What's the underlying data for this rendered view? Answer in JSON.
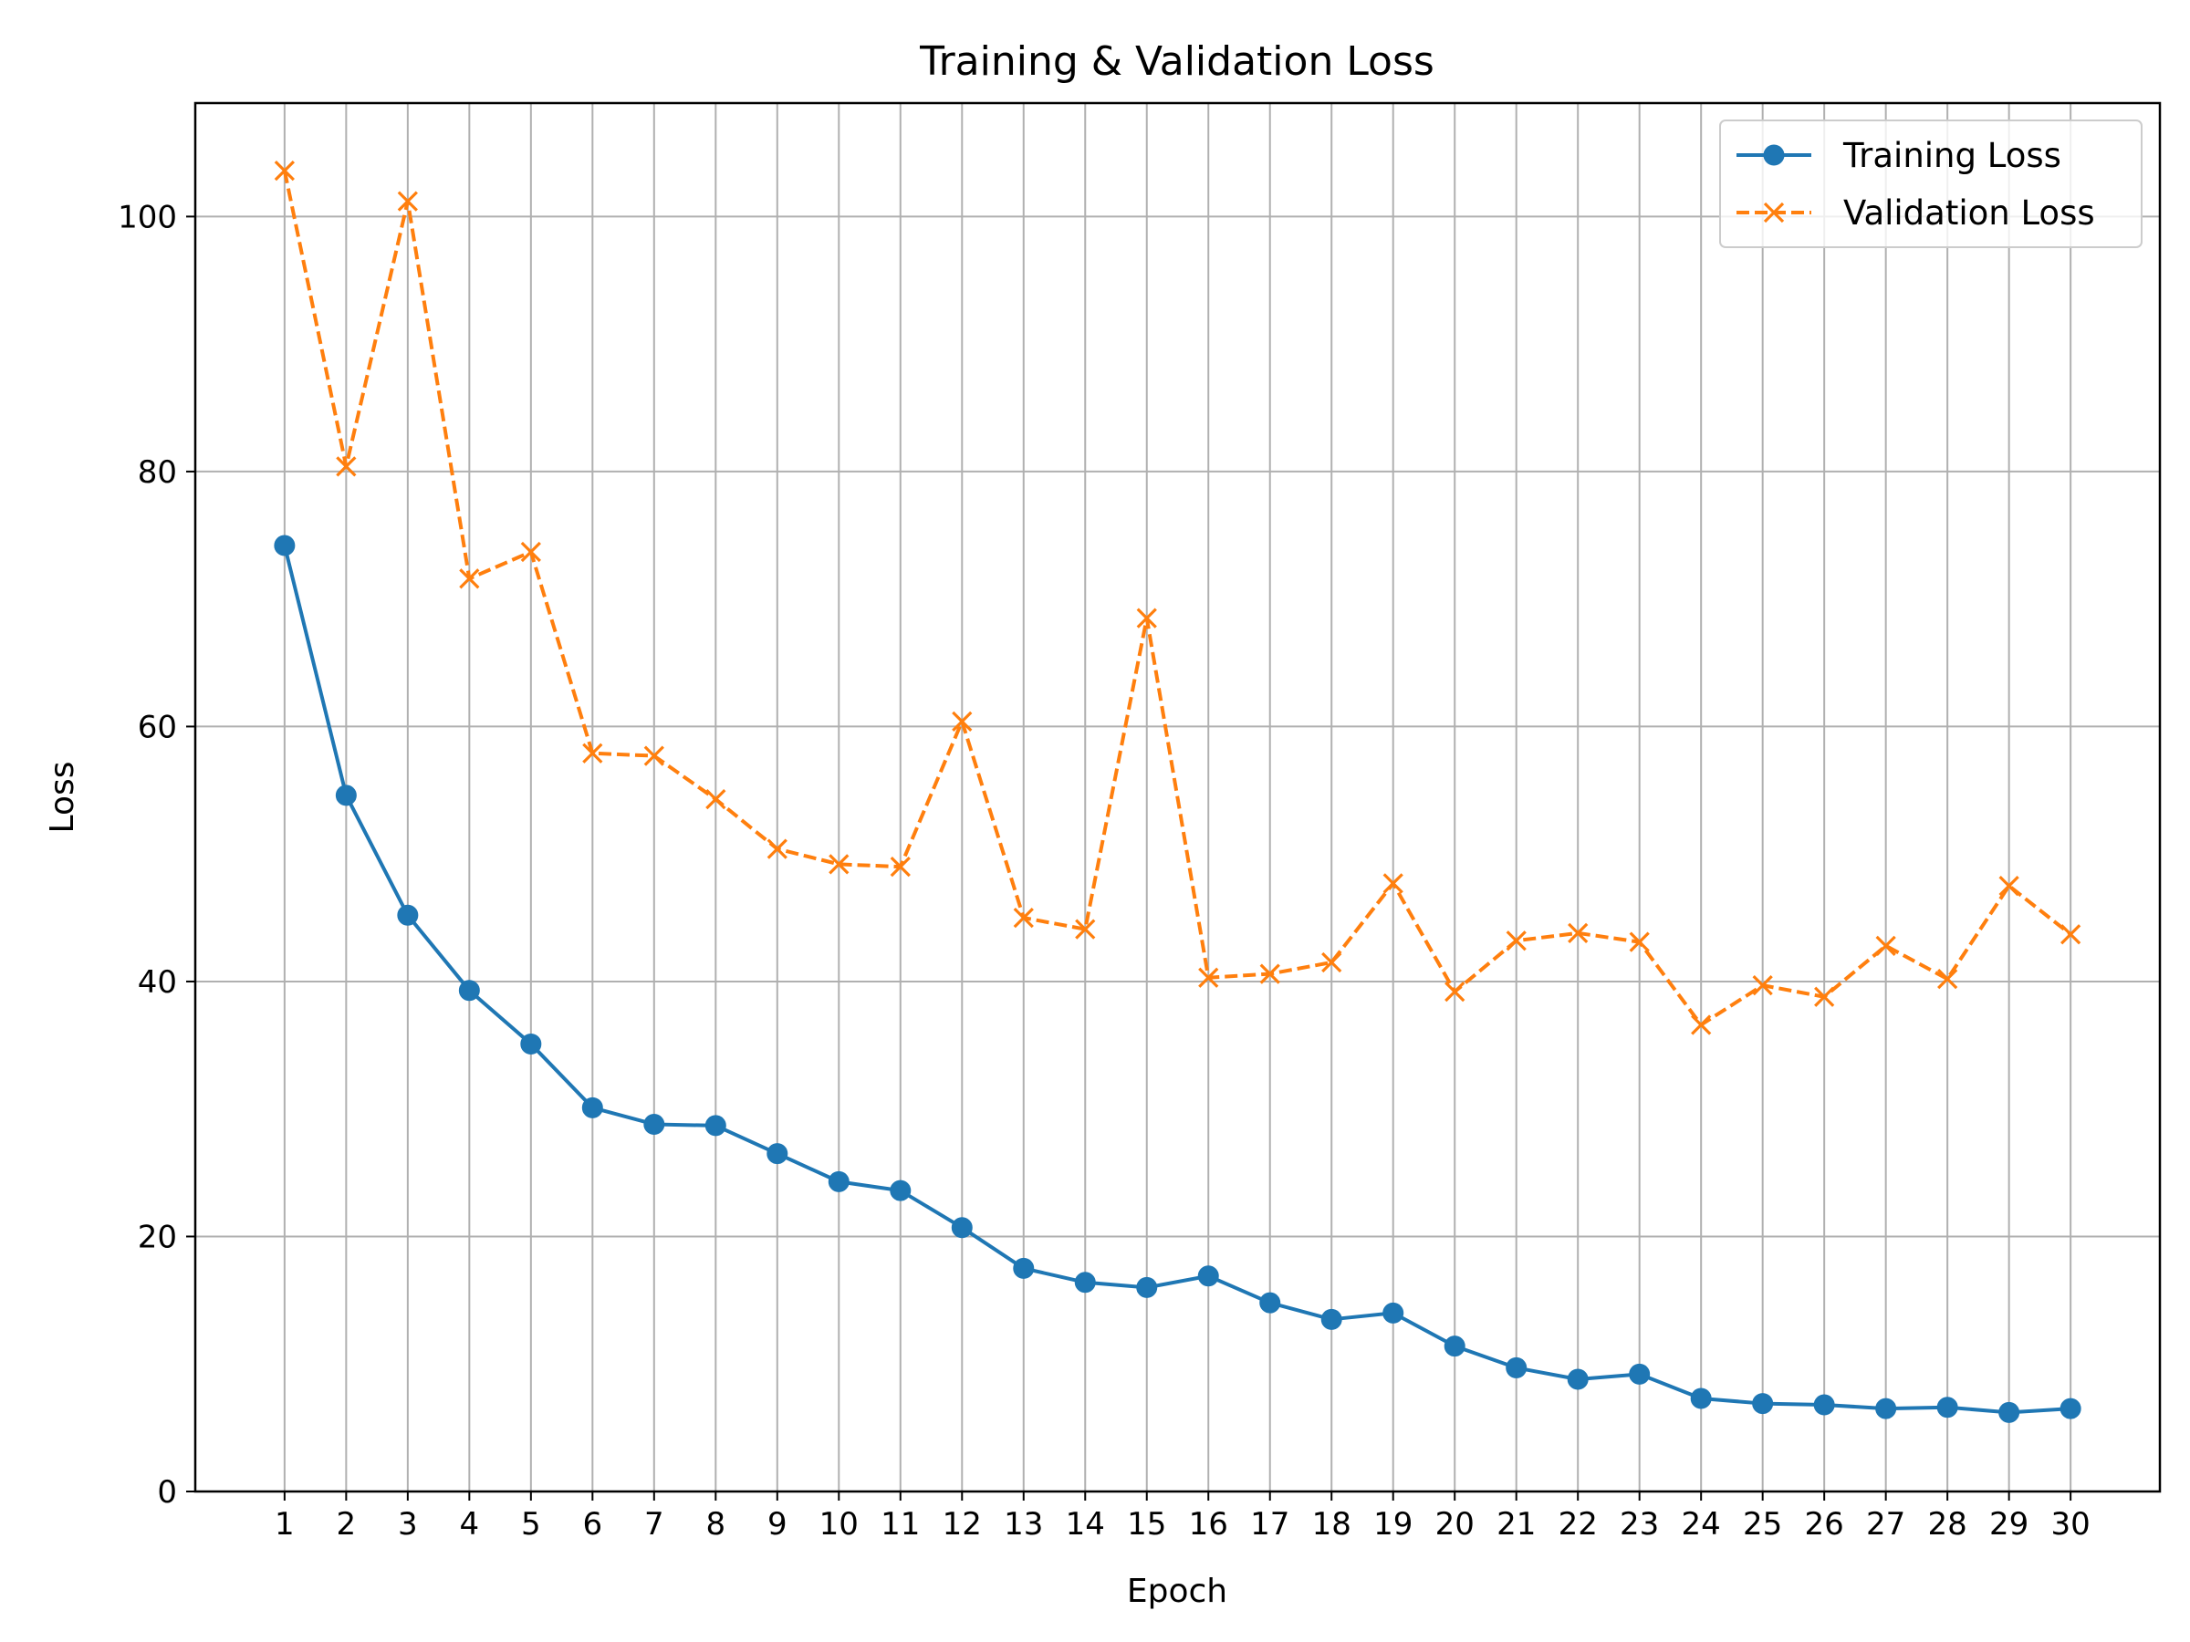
{
  "chart_data": {
    "type": "line",
    "title": "Training & Validation Loss",
    "xlabel": "Epoch",
    "ylabel": "Loss",
    "x": [
      1,
      2,
      3,
      4,
      5,
      6,
      7,
      8,
      9,
      10,
      11,
      12,
      13,
      14,
      15,
      16,
      17,
      18,
      19,
      20,
      21,
      22,
      23,
      24,
      25,
      26,
      27,
      28,
      29,
      30
    ],
    "xlim": [
      -0.45,
      31.45
    ],
    "ylim": [
      0,
      108.9
    ],
    "yticks": [
      0,
      20,
      40,
      60,
      80,
      100
    ],
    "grid": true,
    "legend_position": "top-right",
    "series": [
      {
        "name": "Training Loss",
        "color": "#1f77b4",
        "line_style": "solid",
        "marker": "circle",
        "values": [
          74.2,
          54.6,
          45.2,
          39.3,
          35.1,
          30.1,
          28.8,
          28.7,
          26.5,
          24.3,
          23.6,
          20.7,
          17.5,
          16.4,
          16.0,
          16.9,
          14.8,
          13.5,
          14.0,
          11.4,
          9.7,
          8.8,
          9.2,
          7.3,
          6.9,
          6.8,
          6.5,
          6.6,
          6.2,
          6.5
        ]
      },
      {
        "name": "Validation Loss",
        "color": "#ff7f0e",
        "line_style": "dashed",
        "marker": "x",
        "values": [
          103.6,
          80.4,
          101.2,
          71.6,
          73.7,
          57.9,
          57.7,
          54.3,
          50.4,
          49.2,
          49.0,
          60.4,
          45.0,
          44.1,
          68.5,
          40.3,
          40.6,
          41.5,
          47.7,
          39.2,
          43.2,
          43.8,
          43.1,
          36.6,
          39.7,
          38.8,
          42.8,
          40.2,
          47.5,
          43.7
        ]
      }
    ]
  }
}
